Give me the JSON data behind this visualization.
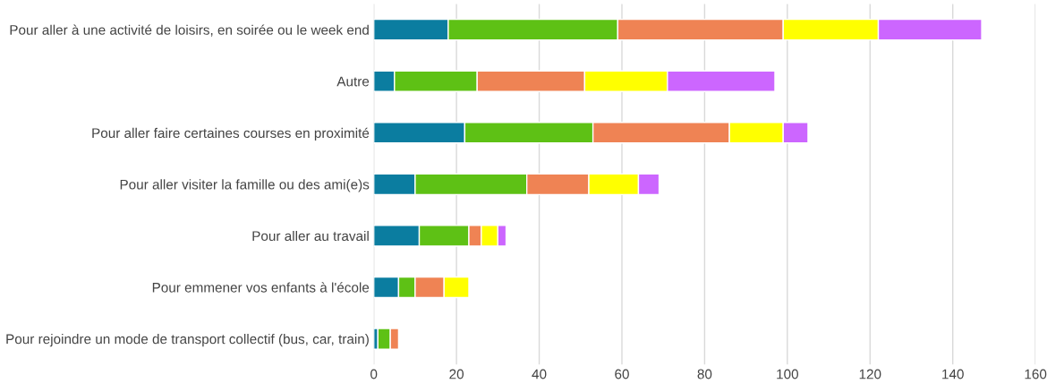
{
  "chart_data": {
    "type": "bar",
    "orientation": "horizontal",
    "stacked": true,
    "categories": [
      "Pour aller à une activité de loisirs, en soirée ou le week end",
      "Autre",
      "Pour aller faire certaines courses en proximité",
      "Pour aller visiter la famille ou des ami(e)s",
      "Pour aller au travail",
      "Pour emmener vos enfants à l'école",
      "Pour rejoindre un mode de transport collectif (bus, car, train)"
    ],
    "series": [
      {
        "color": "#0b7da0",
        "values": [
          18,
          5,
          22,
          10,
          11,
          6,
          1
        ]
      },
      {
        "color": "#5ec115",
        "values": [
          41,
          20,
          31,
          27,
          12,
          4,
          3
        ]
      },
      {
        "color": "#ef8354",
        "values": [
          40,
          26,
          33,
          15,
          3,
          7,
          2
        ]
      },
      {
        "color": "#ffff00",
        "values": [
          23,
          20,
          13,
          12,
          4,
          6,
          null
        ]
      },
      {
        "color": "#cc66ff",
        "values": [
          25,
          26,
          6,
          5,
          2,
          null,
          null
        ]
      }
    ],
    "xlim": [
      0,
      160
    ],
    "xticks": [
      0,
      20,
      40,
      60,
      80,
      100,
      120,
      140,
      160
    ],
    "grid": "x",
    "legend": false
  }
}
